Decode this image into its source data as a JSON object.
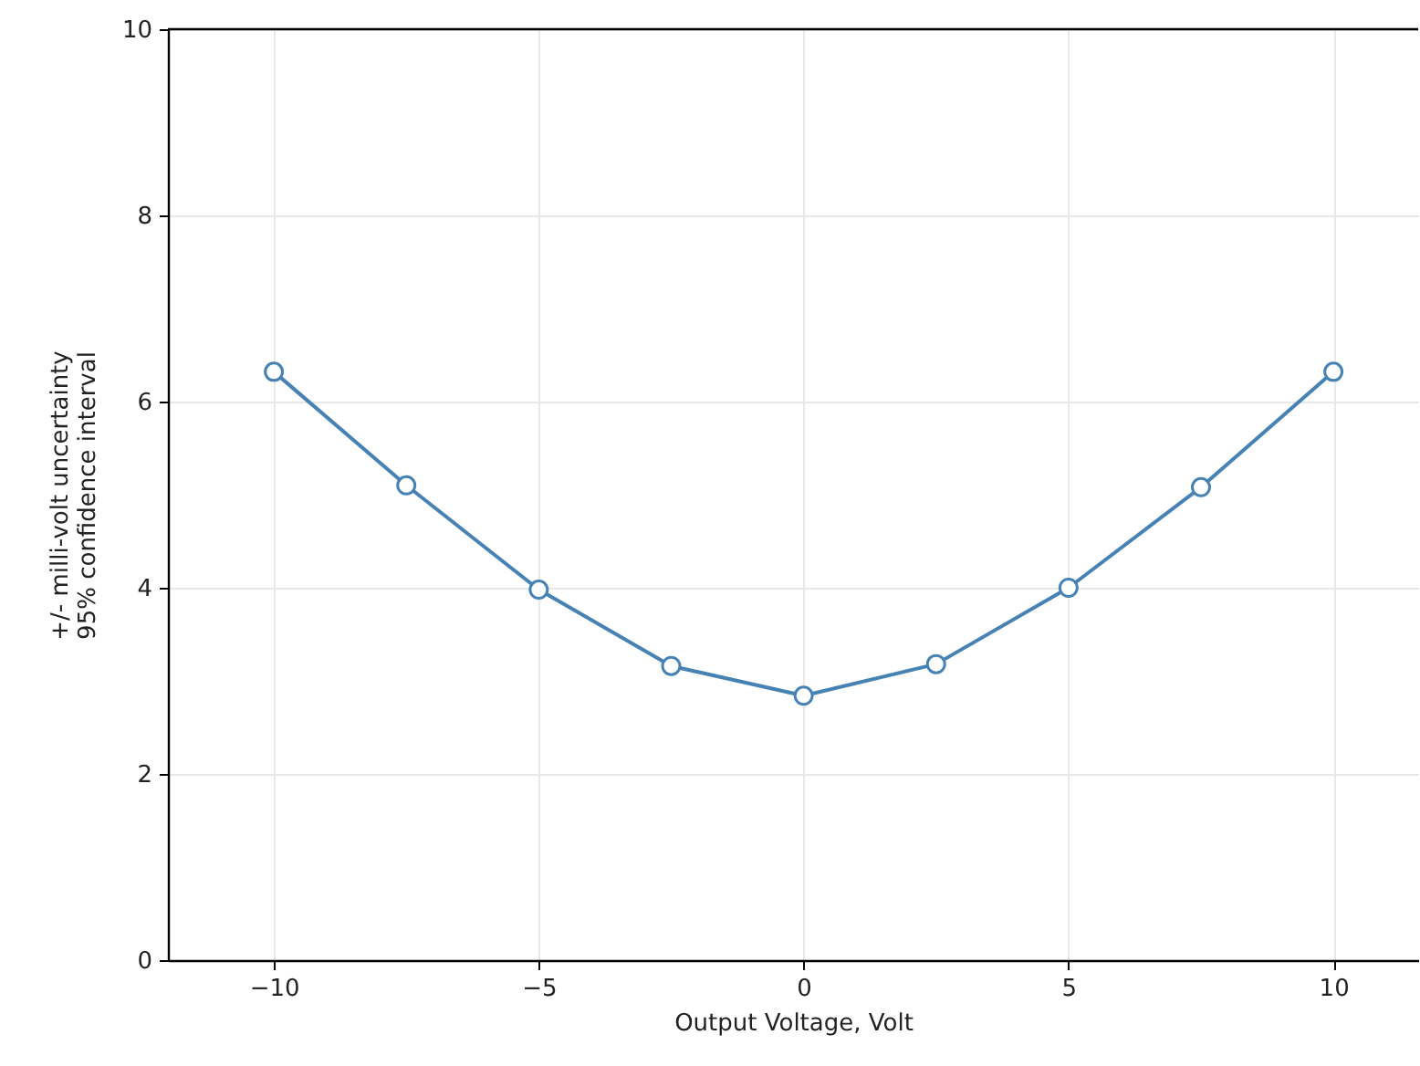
{
  "chart_data": {
    "type": "line",
    "xlabel": "Output Voltage, Volt",
    "ylabel": "+/- milli-volt uncertainty\n95% confidence interval",
    "x": [
      -10,
      -7.5,
      -5,
      -2.5,
      0,
      2.5,
      5,
      7.5,
      10
    ],
    "series": [
      {
        "color": "#4682b4",
        "values": [
          6.32,
          5.1,
          3.98,
          3.16,
          2.84,
          3.18,
          4.0,
          5.08,
          6.32
        ]
      }
    ],
    "xlim": [
      -12,
      11.6
    ],
    "xticks": [
      {
        "value": -10,
        "label": "−10"
      },
      {
        "value": -5,
        "label": "−5"
      },
      0,
      5,
      10
    ],
    "ylim": [
      0,
      10
    ],
    "yticks": [
      0,
      2,
      4,
      6,
      8,
      10
    ],
    "grid": true,
    "marker": "circle",
    "line_style": "solid"
  }
}
